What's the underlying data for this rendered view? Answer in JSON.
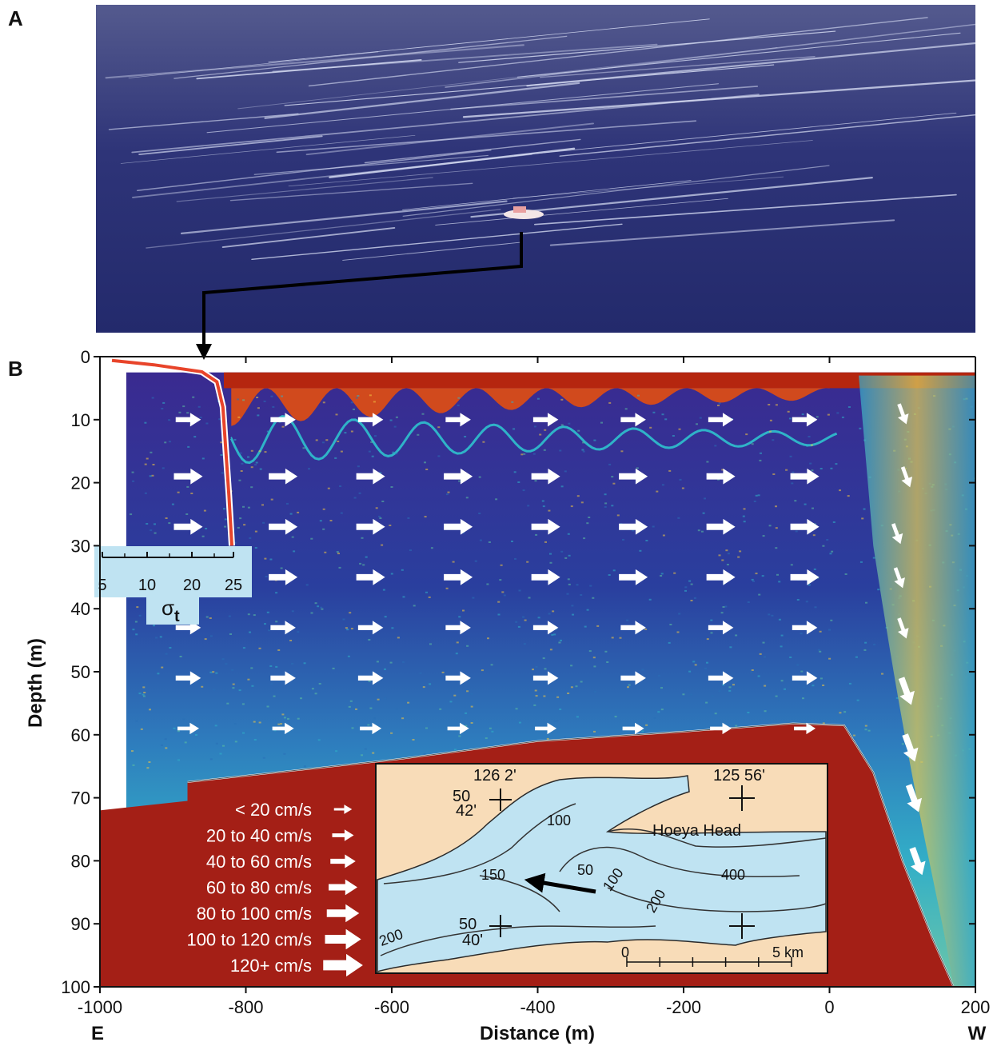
{
  "panels": {
    "a": "A",
    "b": "B"
  },
  "chart_data": {
    "type": "scatter",
    "title": "",
    "xlabel": "Distance (m)",
    "ylabel": "Depth (m)",
    "xlim": [
      -1000,
      200
    ],
    "ylim": [
      100,
      0
    ],
    "x_ticks": [
      -1000,
      -800,
      -600,
      -400,
      -200,
      0,
      200
    ],
    "y_ticks": [
      0,
      10,
      20,
      30,
      40,
      50,
      60,
      70,
      80,
      90,
      100
    ],
    "x_end_labels": {
      "left": "E",
      "right": "W"
    },
    "colors": {
      "echo_high": "#b5260f",
      "echo_mid": "#f2c641",
      "echo_low_cyan": "#2fb3c8",
      "water_dark": "#3c2c8c",
      "seabed": "#a41f16",
      "arrow": "#ffffff",
      "inset_water": "#bfe3f2",
      "inset_land": "#f8dcb8",
      "sigma_line": "#e8442a"
    },
    "bottom_profile": {
      "name": "seabed",
      "points": [
        [
          -880,
          67.5
        ],
        [
          -600,
          64
        ],
        [
          -400,
          61
        ],
        [
          -200,
          59.5
        ],
        [
          -50,
          58.2
        ],
        [
          20,
          58.5
        ],
        [
          60,
          66
        ],
        [
          100,
          80
        ],
        [
          140,
          92
        ],
        [
          170,
          100
        ]
      ]
    },
    "current_arrows": {
      "columns_x": [
        -880,
        -750,
        -630,
        -510,
        -390,
        -270,
        -150,
        -35
      ],
      "rows_depth": [
        10,
        19,
        27,
        35,
        43,
        51,
        59
      ],
      "row_speed_class": [
        3,
        4,
        4,
        4,
        3,
        3,
        2
      ],
      "downslope_arrows": [
        [
          100,
          9
        ],
        [
          105,
          19
        ],
        [
          92,
          28
        ],
        [
          95,
          35
        ],
        [
          100,
          43
        ],
        [
          105,
          53
        ],
        [
          110,
          62
        ],
        [
          115,
          70
        ],
        [
          120,
          80
        ]
      ]
    },
    "sigma_t_profile": {
      "name": "σt",
      "axis_ticks": [
        "5",
        "10",
        "20",
        "25"
      ],
      "axis_label": "σ",
      "axis_label_sub": "t",
      "points": [
        [
          5,
          0.6
        ],
        [
          12,
          1.3
        ],
        [
          20,
          2.4
        ],
        [
          22.5,
          4
        ],
        [
          23.5,
          8
        ],
        [
          24,
          15
        ],
        [
          24.5,
          22
        ],
        [
          25,
          30
        ]
      ]
    },
    "legend": {
      "entries": [
        {
          "label": "< 20 cm/s",
          "speed_class": 1
        },
        {
          "label": "20 to 40 cm/s",
          "speed_class": 2
        },
        {
          "label": "40 to 60 cm/s",
          "speed_class": 3
        },
        {
          "label": "60 to 80 cm/s",
          "speed_class": 4
        },
        {
          "label": "80 to 100 cm/s",
          "speed_class": 5
        },
        {
          "label": "100 to 120 cm/s",
          "speed_class": 6
        },
        {
          "label": "120+ cm/s",
          "speed_class": 7
        }
      ]
    },
    "inset_map": {
      "lon_labels": [
        "126 2'",
        "125 56'"
      ],
      "lat_labels": [
        [
          "50",
          "42'"
        ],
        [
          "50",
          "40'"
        ]
      ],
      "place": "Hoeya Head",
      "contour_labels": [
        "100",
        "150",
        "50",
        "100",
        "200",
        "400",
        "200"
      ],
      "scale": {
        "start": "0",
        "end": "5 km"
      }
    }
  }
}
